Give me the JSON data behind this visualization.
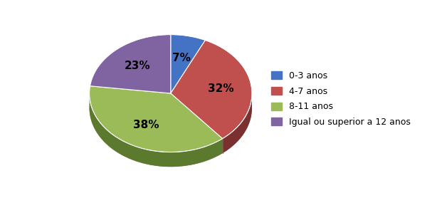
{
  "labels": [
    "0-3 anos",
    "4-7 anos",
    "8-11 anos",
    "Igual ou superior a 12 anos"
  ],
  "values": [
    7,
    32,
    38,
    23
  ],
  "colors": [
    "#4472C4",
    "#C0504D",
    "#9BBB59",
    "#8064A2"
  ],
  "dark_colors": [
    "#2E4F8A",
    "#7B2F2F",
    "#5C7A2E",
    "#4E3A6E"
  ],
  "pct_labels": [
    "7%",
    "32%",
    "38%",
    "23%"
  ],
  "startangle": 90,
  "background_color": "#FFFFFF",
  "legend_fontsize": 9,
  "pct_fontsize": 11,
  "pct_color": "black"
}
